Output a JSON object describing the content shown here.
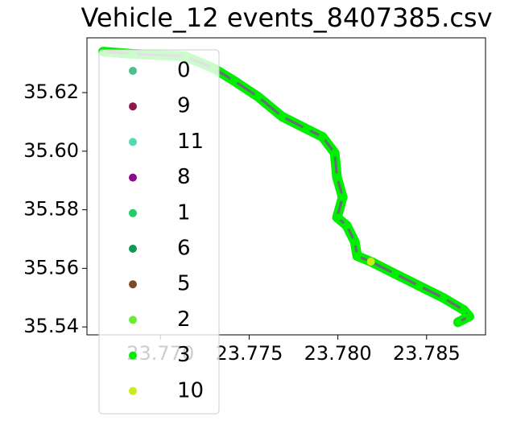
{
  "chart_data": {
    "type": "scatter",
    "title": "Vehicle_12 events_8407385.csv",
    "xlim": [
      23.76586,
      23.78832
    ],
    "ylim": [
      35.5373,
      35.6387
    ],
    "xticks": [
      {
        "value": 23.77,
        "label": "23.770"
      },
      23.775,
      {
        "value": 23.78,
        "label": "23.780"
      },
      23.785
    ],
    "yticks": [
      35.54,
      35.56,
      35.58,
      {
        "value": 35.6,
        "label": "35.60"
      },
      35.62
    ],
    "legend": "upper left",
    "series": [
      {
        "name": "0",
        "color": "#4dbf88",
        "x": [
          23.77141,
          23.77413,
          23.77823,
          23.78109
        ],
        "y": [
          35.6324,
          35.6241,
          35.6076,
          35.5642
        ]
      },
      {
        "name": "9",
        "color": "#8b1a4b",
        "x": [
          23.76677,
          23.78677
        ],
        "y": [
          35.634,
          35.5416
        ]
      },
      {
        "name": "11",
        "color": "#55d9b5",
        "x": [
          23.76845,
          23.78741
        ],
        "y": [
          35.6332,
          35.5436
        ]
      },
      {
        "name": "8",
        "color": "#8b0a8b",
        "x": [
          23.78741,
          23.77995
        ],
        "y": [
          35.5436,
          35.5774
        ]
      },
      {
        "name": "1",
        "color": "#22cc66",
        "x": [
          23.773,
          23.77686
        ],
        "y": [
          35.6283,
          35.6118
        ]
      },
      {
        "name": "6",
        "color": "#119955",
        "x": [
          23.7755,
          23.78459
        ],
        "y": [
          35.6186,
          35.554
        ]
      },
      {
        "name": "5",
        "color": "#7f4a28",
        "x": [
          23.76677
        ],
        "y": [
          35.634
        ]
      },
      {
        "name": "2",
        "color": "#66ee33",
        "x": [
          23.78323
        ],
        "y": [
          35.5581
        ]
      },
      {
        "name": "3",
        "color": "#00ee00",
        "x": [
          23.76677,
          23.76845,
          23.77141,
          23.773,
          23.77413,
          23.7755,
          23.77686,
          23.77823,
          23.77913,
          23.77982,
          23.77995,
          23.78027,
          23.77995,
          23.7805,
          23.78095,
          23.78109,
          23.78186,
          23.78323,
          23.78459,
          23.78595,
          23.78709,
          23.78741,
          23.78677
        ],
        "y": [
          35.634,
          35.6332,
          35.6324,
          35.6283,
          35.6241,
          35.6186,
          35.6118,
          35.6076,
          35.6049,
          35.5994,
          35.5911,
          35.5843,
          35.5774,
          35.5746,
          35.5691,
          35.5642,
          35.5623,
          35.5581,
          35.554,
          35.5499,
          35.5458,
          35.5436,
          35.5416
        ]
      },
      {
        "name": "10",
        "color": "#c8ee1a",
        "x": [
          23.78186
        ],
        "y": [
          35.5623
        ]
      }
    ]
  }
}
